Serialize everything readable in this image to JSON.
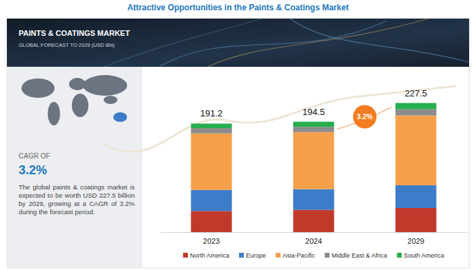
{
  "page": {
    "heading": "Attractive Opportunities in the Paints & Coatings Market",
    "cagr_label": "CAGR OF",
    "cagr_value": "3.2%",
    "description": "The global paints & coatings market is expected to be worth USD 227.5 billion by 2029, growing at a CAGR of 3.2% during the forecast period."
  },
  "chart_data": {
    "type": "bar",
    "title": "PAINTS & COATINGS MARKET",
    "subtitle": "GLOBAL FORECAST TO 2029 (USD BN)",
    "categories": [
      "2023",
      "2024",
      "2029"
    ],
    "series": [
      {
        "name": "North America",
        "color": "#c0392b",
        "values": [
          37.2,
          39.2,
          42.5
        ]
      },
      {
        "name": "Europe",
        "color": "#3d7cc9",
        "values": [
          37.2,
          36.5,
          40
        ]
      },
      {
        "name": "Asia-Pacific",
        "color": "#f7a04b",
        "values": [
          99.5,
          100.6,
          123
        ]
      },
      {
        "name": "Middle East & Africa",
        "color": "#8c8c8c",
        "values": [
          9.3,
          9.1,
          11
        ]
      },
      {
        "name": "South America",
        "color": "#27ae4f",
        "values": [
          8,
          9.1,
          11
        ]
      }
    ],
    "stacked": true,
    "ylim": [
      0,
      250
    ],
    "tick_labels": "x",
    "legend": "bottom",
    "totals": [
      191.2,
      194.5,
      227.5
    ],
    "annotations": [
      "3.2%"
    ]
  }
}
